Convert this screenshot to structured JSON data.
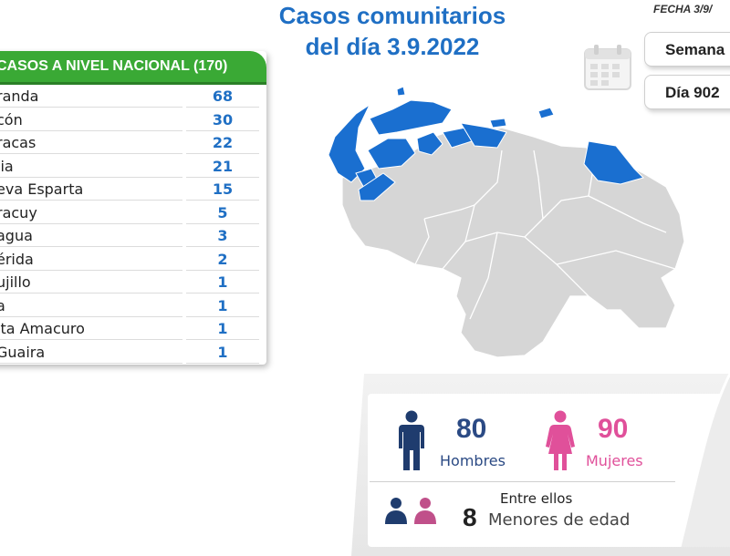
{
  "header": {
    "title_line1": "Casos comunitarios",
    "title_line2": "del día 3.9.2022",
    "fecha": "FECHA 3/9/",
    "semana_label": "Semana",
    "dia_label": "Día 902"
  },
  "table": {
    "header": "CASOS A NIVEL NACIONAL  (170)",
    "rows": [
      {
        "name": "randa",
        "value": "68"
      },
      {
        "name": "cón",
        "value": "30"
      },
      {
        "name": "racas",
        "value": "22"
      },
      {
        "name": "lia",
        "value": "21"
      },
      {
        "name": "eva Esparta",
        "value": "15"
      },
      {
        "name": "racuy",
        "value": "5"
      },
      {
        "name": "agua",
        "value": "3"
      },
      {
        "name": "érida",
        "value": "2"
      },
      {
        "name": "ujillo",
        "value": "1"
      },
      {
        "name": "a",
        "value": "1"
      },
      {
        "name": "lta Amacuro",
        "value": "1"
      },
      {
        "name": "Guaira",
        "value": "1"
      }
    ]
  },
  "stats": {
    "hombres_count": "80",
    "hombres_label": "Hombres",
    "mujeres_count": "90",
    "mujeres_label": "Mujeres",
    "entre_ellos": "Entre ellos",
    "menores_count": "8",
    "menores_label": "Menores de edad"
  },
  "icons": {
    "calendar": "calendar-icon",
    "man": "man-icon",
    "woman": "woman-icon",
    "children": "children-icon"
  },
  "colors": {
    "title_blue": "#1f6fc4",
    "header_green": "#3aa935",
    "highlight_state": "#1a6fd0",
    "other_state": "#d6d6d6",
    "men": "#1f3c6e",
    "women": "#e0509a"
  }
}
